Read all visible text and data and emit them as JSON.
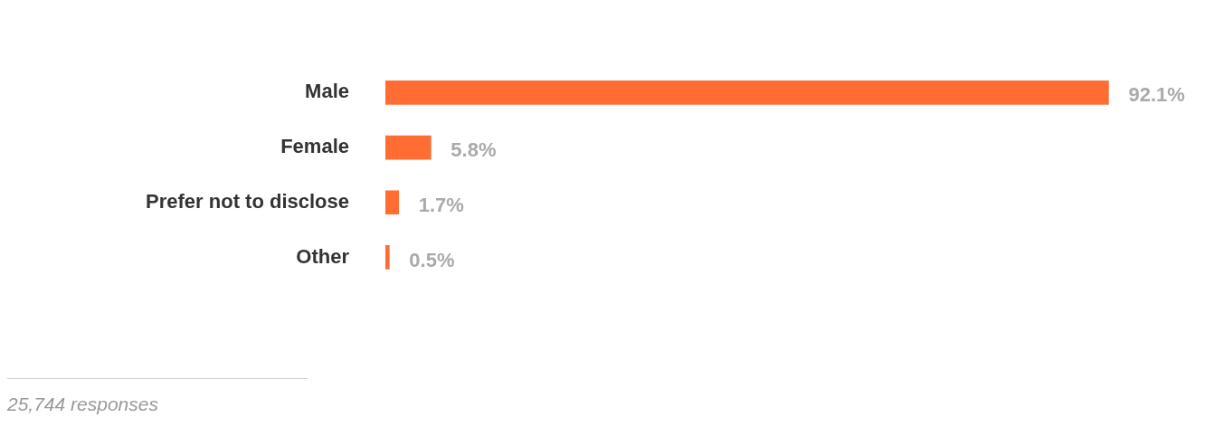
{
  "chart_data": {
    "type": "bar",
    "orientation": "horizontal",
    "categories": [
      "Male",
      "Female",
      "Prefer not to disclose",
      "Other"
    ],
    "values": [
      92.1,
      5.8,
      1.7,
      0.5
    ],
    "value_labels": [
      "92.1%",
      "5.8%",
      "1.7%",
      "0.5%"
    ],
    "color": "#ff6d33",
    "grid": false,
    "legend": false,
    "annotations": [
      "25,744 responses"
    ]
  }
}
